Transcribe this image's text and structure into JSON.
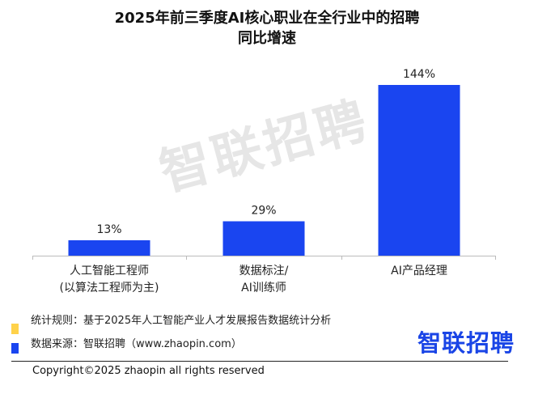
{
  "title_line1": "2025年前三季度AI核心职业在全行业中的招聘",
  "title_line2": "同比增速",
  "watermark": "智联招聘",
  "chart_data": {
    "type": "bar",
    "title": "2025年前三季度AI核心职业在全行业中的招聘同比增速",
    "categories": [
      [
        "人工智能工程师",
        "(以算法工程师为主)"
      ],
      [
        "数据标注/",
        "AI训练师"
      ],
      [
        "AI产品经理"
      ]
    ],
    "values": [
      13,
      29,
      144
    ],
    "value_labels": [
      "13%",
      "29%",
      "144%"
    ],
    "bar_color": "#1a45f0",
    "grid": false,
    "ylim": [
      0,
      150
    ]
  },
  "legend": [
    {
      "color": "#ffd24a",
      "text": "统计规则：基于2025年人工智能产业人才发展报告数据统计分析"
    },
    {
      "color": "#1a45f0",
      "text": "数据来源：智联招聘（www.zhaopin.com）"
    }
  ],
  "logo_text": "智联招聘",
  "copyright": "Copyright©2025 zhaopin all rights reserved"
}
